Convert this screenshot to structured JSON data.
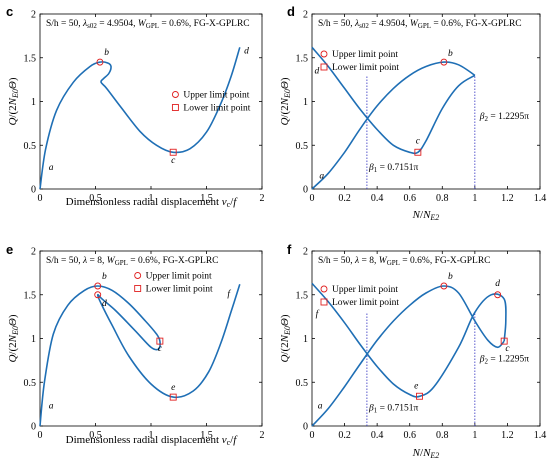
{
  "chart_data": [
    {
      "id": "c",
      "type": "line",
      "panel_label": "c",
      "annotation": "S/h = 50, λs02 = 4.9504, WGPL = 0.6%, FG-X-GPLRC",
      "annotation_parts": {
        "p1": "S/h = 50, ",
        "lam": "λ",
        "lam_sub": "s02",
        "p2": " = 4.9504, ",
        "w": "W",
        "w_sub": "GPL",
        "p3": " = 0.6%, FG-X-GPLRC"
      },
      "xlabel": "Dimensionless radial displacement vc/f",
      "xlabel_parts": {
        "p1": "Dimensionless radial displacement ",
        "v": "v",
        "v_sub": "c",
        "p2": "/",
        "f": "f"
      },
      "ylabel": "Q/(2NE0Θ)",
      "xlim": [
        0,
        2
      ],
      "ylim": [
        0,
        2
      ],
      "xticks": [
        "0",
        "0.5",
        "1",
        "1.5",
        "2"
      ],
      "yticks": [
        "0",
        "0.5",
        "1",
        "1.5",
        "2"
      ],
      "series": [
        {
          "x": [
            0,
            0.05,
            0.15,
            0.3,
            0.45,
            0.54,
            0.61,
            0.64,
            0.62,
            0.57,
            0.55,
            0.6,
            0.72,
            0.9,
            1.05,
            1.2,
            1.35,
            1.5,
            1.62,
            1.72,
            1.8
          ],
          "y": [
            0,
            0.45,
            0.9,
            1.22,
            1.4,
            1.45,
            1.44,
            1.4,
            1.32,
            1.26,
            1.22,
            1.15,
            0.95,
            0.66,
            0.5,
            0.42,
            0.46,
            0.65,
            0.95,
            1.28,
            1.62
          ]
        }
      ],
      "point_labels": [
        {
          "text": "a",
          "x": 0.1,
          "y": 0.22
        },
        {
          "text": "b",
          "x": 0.6,
          "y": 1.53
        },
        {
          "text": "c",
          "x": 1.2,
          "y": 0.3
        },
        {
          "text": "d",
          "x": 1.86,
          "y": 1.55
        }
      ],
      "upper_limit_points": [
        {
          "x": 0.54,
          "y": 1.45
        }
      ],
      "lower_limit_points": [
        {
          "x": 1.2,
          "y": 0.42
        }
      ],
      "legend": [
        "Upper limit point",
        "Lower limit point"
      ]
    },
    {
      "id": "d",
      "type": "line",
      "panel_label": "d",
      "annotation": "S/h = 50, λs02 = 4.9504, WGPL = 0.6%, FG-X-GPLRC",
      "annotation_parts": {
        "p1": "S/h = 50, ",
        "lam": "λ",
        "lam_sub": "s02",
        "p2": " = 4.9504, ",
        "w": "W",
        "w_sub": "GPL",
        "p3": " = 0.6%, FG-X-GPLRC"
      },
      "xlabel": "N/NE2",
      "ylabel": "Q/(2NE0Θ)",
      "xlim": [
        0,
        1.4
      ],
      "ylim": [
        0,
        2
      ],
      "xticks": [
        "0",
        "0.2",
        "0.4",
        "0.6",
        "0.8",
        "1",
        "1.2",
        "1.4"
      ],
      "yticks": [
        "0",
        "0.5",
        "1",
        "1.5",
        "2"
      ],
      "series": [
        {
          "x": [
            0,
            0.1,
            0.2,
            0.3,
            0.4,
            0.5,
            0.6,
            0.65,
            0.7,
            0.8,
            0.9,
            1.0
          ],
          "y": [
            1.62,
            1.4,
            1.15,
            0.9,
            0.68,
            0.5,
            0.42,
            0.42,
            0.55,
            0.92,
            1.18,
            1.3
          ]
        },
        {
          "x": [
            0,
            0.1,
            0.2,
            0.3,
            0.4,
            0.5,
            0.6,
            0.7,
            0.81,
            0.9,
            1.0
          ],
          "y": [
            0,
            0.18,
            0.42,
            0.7,
            0.95,
            1.15,
            1.3,
            1.4,
            1.45,
            1.42,
            1.3
          ]
        }
      ],
      "point_labels": [
        {
          "text": "a",
          "x": 0.06,
          "y": 0.12
        },
        {
          "text": "b",
          "x": 0.85,
          "y": 1.52
        },
        {
          "text": "c",
          "x": 0.65,
          "y": 0.52
        },
        {
          "text": "d",
          "x": 0.03,
          "y": 1.32
        }
      ],
      "upper_limit_points": [
        {
          "x": 0.81,
          "y": 1.45
        }
      ],
      "lower_limit_points": [
        {
          "x": 0.65,
          "y": 0.42
        }
      ],
      "vlines": [
        0.3372,
        1.0
      ],
      "beta_labels": [
        {
          "text": "β1 = 0.7151π",
          "sym": "β",
          "sub": "1",
          "val": " = 0.7151π",
          "x": 0.35,
          "y": 0.22
        },
        {
          "text": "β2 = 1.2295π",
          "sym": "β",
          "sub": "2",
          "val": " = 1.2295π",
          "x": 1.03,
          "y": 0.8
        }
      ],
      "legend": [
        "Upper limit point",
        "Lower limit point"
      ]
    },
    {
      "id": "e",
      "type": "line",
      "panel_label": "e",
      "annotation": "S/h = 50, λ = 8, WGPL = 0.6%, FG-X-GPLRC",
      "annotation_parts": {
        "p1": "S/h = 50, ",
        "lam": "λ",
        "lam_sub": "",
        "p2": " = 8, ",
        "w": "W",
        "w_sub": "GPL",
        "p3": " = 0.6%, FG-X-GPLRC"
      },
      "xlabel": "Dimensionless radial displacement vc/f",
      "xlabel_parts": {
        "p1": "Dimensionless radial displacement ",
        "v": "v",
        "v_sub": "c",
        "p2": "/",
        "f": "f"
      },
      "ylabel": "Q/(2NE0Θ)",
      "xlim": [
        0,
        2
      ],
      "ylim": [
        0,
        2
      ],
      "xticks": [
        "0",
        "0.5",
        "1",
        "1.5",
        "2"
      ],
      "yticks": [
        "0",
        "0.5",
        "1",
        "1.5",
        "2"
      ],
      "series": [
        {
          "x": [
            0,
            0.04,
            0.12,
            0.25,
            0.4,
            0.52,
            0.65,
            0.8,
            0.95,
            1.05,
            1.08,
            1.07,
            1.0,
            0.85,
            0.68,
            0.56,
            0.52,
            0.55,
            0.65,
            0.8,
            1.0,
            1.2,
            1.38,
            1.52,
            1.63,
            1.72,
            1.8
          ],
          "y": [
            0,
            0.5,
            1.05,
            1.38,
            1.55,
            1.6,
            1.55,
            1.4,
            1.2,
            1.05,
            0.97,
            0.88,
            0.9,
            1.1,
            1.32,
            1.45,
            1.5,
            1.4,
            1.15,
            0.8,
            0.48,
            0.33,
            0.4,
            0.62,
            0.95,
            1.3,
            1.62
          ]
        }
      ],
      "point_labels": [
        {
          "text": "a",
          "x": 0.1,
          "y": 0.2
        },
        {
          "text": "b",
          "x": 0.58,
          "y": 1.68
        },
        {
          "text": "c",
          "x": 1.08,
          "y": 0.86
        },
        {
          "text": "d",
          "x": 0.58,
          "y": 1.37
        },
        {
          "text": "e",
          "x": 1.2,
          "y": 0.41
        },
        {
          "text": "f",
          "x": 1.7,
          "y": 1.48
        }
      ],
      "upper_limit_points": [
        {
          "x": 0.52,
          "y": 1.6
        },
        {
          "x": 0.52,
          "y": 1.5
        }
      ],
      "lower_limit_points": [
        {
          "x": 1.08,
          "y": 0.97
        },
        {
          "x": 1.2,
          "y": 0.33
        }
      ],
      "legend": [
        "Upper limit point",
        "Lower limit point"
      ]
    },
    {
      "id": "f",
      "type": "line",
      "panel_label": "f",
      "annotation": "S/h = 50, λ = 8, WGPL = 0.6%, FG-X-GPLRC",
      "annotation_parts": {
        "p1": "S/h = 50, ",
        "lam": "λ",
        "lam_sub": "",
        "p2": " = 8, ",
        "w": "W",
        "w_sub": "GPL",
        "p3": " = 0.6%, FG-X-GPLRC"
      },
      "xlabel": "N/NE2",
      "ylabel": "Q/(2NE0Θ)",
      "xlim": [
        0,
        1.4
      ],
      "ylim": [
        0,
        2
      ],
      "xticks": [
        "0",
        "0.2",
        "0.4",
        "0.6",
        "0.8",
        "1",
        "1.2",
        "1.4"
      ],
      "yticks": [
        "0",
        "0.5",
        "1",
        "1.5",
        "2"
      ],
      "series": [
        {
          "x": [
            0,
            0.1,
            0.2,
            0.3,
            0.4,
            0.5,
            0.6,
            0.66,
            0.75,
            0.9,
            1.0,
            1.1,
            1.18,
            1.19,
            1.18
          ],
          "y": [
            1.63,
            1.42,
            1.18,
            0.92,
            0.68,
            0.48,
            0.36,
            0.34,
            0.45,
            0.9,
            1.3,
            1.5,
            1.45,
            1.2,
            0.97
          ]
        },
        {
          "x": [
            0,
            0.1,
            0.2,
            0.3,
            0.4,
            0.5,
            0.6,
            0.7,
            0.81,
            0.9,
            1.0,
            1.08,
            1.14,
            1.18
          ],
          "y": [
            0,
            0.2,
            0.45,
            0.72,
            0.98,
            1.2,
            1.38,
            1.52,
            1.6,
            1.52,
            1.2,
            0.98,
            0.9,
            0.97
          ]
        }
      ],
      "point_labels": [
        {
          "text": "a",
          "x": 0.05,
          "y": 0.2
        },
        {
          "text": "b",
          "x": 0.85,
          "y": 1.68
        },
        {
          "text": "c",
          "x": 1.2,
          "y": 0.86
        },
        {
          "text": "d",
          "x": 1.14,
          "y": 1.6
        },
        {
          "text": "e",
          "x": 0.64,
          "y": 0.43
        },
        {
          "text": "f",
          "x": 0.03,
          "y": 1.25
        }
      ],
      "upper_limit_points": [
        {
          "x": 0.81,
          "y": 1.6
        },
        {
          "x": 1.14,
          "y": 1.5
        }
      ],
      "lower_limit_points": [
        {
          "x": 0.66,
          "y": 0.34
        },
        {
          "x": 1.18,
          "y": 0.97
        }
      ],
      "vlines": [
        0.3372,
        1.0
      ],
      "beta_labels": [
        {
          "text": "β1 = 0.7151π",
          "sym": "β",
          "sub": "1",
          "val": " = 0.7151π",
          "x": 0.35,
          "y": 0.18
        },
        {
          "text": "β2 = 1.2295π",
          "sym": "β",
          "sub": "2",
          "val": " = 1.2295π",
          "x": 1.03,
          "y": 0.74
        }
      ],
      "legend": [
        "Upper limit point",
        "Lower limit point"
      ]
    }
  ],
  "colors": {
    "curve": "#1f6fb5",
    "upper_marker": "#e02020",
    "lower_marker": "#e02020",
    "vline": "#3030c0"
  }
}
